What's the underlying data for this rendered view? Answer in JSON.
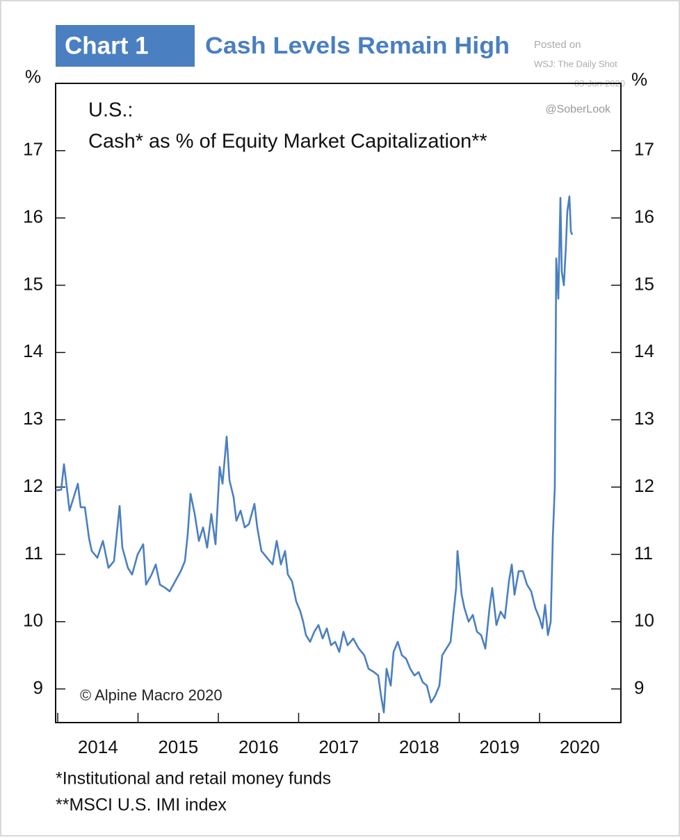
{
  "chart_data": {
    "type": "line",
    "header_label": "Chart 1",
    "title": "Cash Levels Remain High",
    "subtitle": [
      "U.S.:",
      "Cash* as % of Equity Market Capitalization**"
    ],
    "watermark": [
      "Posted on",
      "WSJ: The Daily Shot",
      "03-Jun-2020"
    ],
    "credit": "@SoberLook",
    "copyright": "© Alpine Macro 2020",
    "y_unit_label": "%",
    "y2_unit_label": "%",
    "notes": [
      "*Institutional and retail money funds",
      "**MSCI U.S. IMI index"
    ],
    "color": "#4a7fc1",
    "xlim": [
      2013.974,
      2021.013
    ],
    "xticks": [
      2014,
      2015,
      2016,
      2017,
      2018,
      2019,
      2020
    ],
    "ylim": [
      8.5,
      18
    ],
    "yticks": [
      9,
      10,
      11,
      12,
      13,
      14,
      15,
      16,
      17
    ],
    "y2lim": [
      8.5,
      18
    ],
    "y2ticks": [
      9,
      10,
      11,
      12,
      13,
      14,
      15,
      16,
      17
    ],
    "x": [
      2013.974,
      2014.043,
      2014.078,
      2014.113,
      2014.147,
      2014.251,
      2014.286,
      2014.338,
      2014.39,
      2014.424,
      2014.494,
      2014.563,
      2014.632,
      2014.701,
      2014.771,
      2014.805,
      2014.874,
      2014.926,
      2014.996,
      2015.065,
      2015.1,
      2015.169,
      2015.221,
      2015.273,
      2015.342,
      2015.394,
      2015.463,
      2015.532,
      2015.584,
      2015.619,
      2015.654,
      2015.706,
      2015.758,
      2015.81,
      2015.861,
      2015.913,
      2015.965,
      2016.017,
      2016.052,
      2016.104,
      2016.139,
      2016.19,
      2016.225,
      2016.277,
      2016.329,
      2016.381,
      2016.45,
      2016.485,
      2016.537,
      2016.606,
      2016.675,
      2016.727,
      2016.779,
      2016.831,
      2016.866,
      2016.918,
      2016.97,
      2017.022,
      2017.056,
      2017.091,
      2017.143,
      2017.195,
      2017.247,
      2017.299,
      2017.351,
      2017.403,
      2017.455,
      2017.506,
      2017.558,
      2017.61,
      2017.68,
      2017.749,
      2017.818,
      2017.87,
      2017.939,
      2017.991,
      2018.026,
      2018.061,
      2018.095,
      2018.147,
      2018.182,
      2018.234,
      2018.286,
      2018.338,
      2018.39,
      2018.442,
      2018.494,
      2018.545,
      2018.597,
      2018.649,
      2018.701,
      2018.753,
      2018.788,
      2018.84,
      2018.892,
      2018.926,
      2018.961,
      2018.978,
      2019.03,
      2019.065,
      2019.117,
      2019.169,
      2019.221,
      2019.273,
      2019.325,
      2019.377,
      2019.411,
      2019.463,
      2019.515,
      2019.567,
      2019.619,
      2019.654,
      2019.688,
      2019.74,
      2019.792,
      2019.844,
      2019.896,
      2019.948,
      2020.0,
      2020.035,
      2020.069,
      2020.104,
      2020.139,
      2020.165,
      2020.19,
      2020.208,
      2020.234,
      2020.26,
      2020.277,
      2020.303,
      2020.329,
      2020.346,
      2020.372,
      2020.39,
      2020.407
    ],
    "values": [
      11.95,
      11.96,
      12.34,
      12.0,
      11.65,
      12.05,
      11.7,
      11.7,
      11.24,
      11.05,
      10.95,
      11.2,
      10.8,
      10.9,
      11.72,
      11.1,
      10.8,
      10.7,
      11.0,
      11.15,
      10.55,
      10.7,
      10.85,
      10.55,
      10.5,
      10.45,
      10.6,
      10.75,
      10.9,
      11.3,
      11.9,
      11.6,
      11.2,
      11.4,
      11.1,
      11.6,
      11.15,
      12.3,
      12.05,
      12.75,
      12.1,
      11.85,
      11.5,
      11.65,
      11.4,
      11.45,
      11.75,
      11.4,
      11.05,
      10.95,
      10.85,
      11.2,
      10.85,
      11.05,
      10.7,
      10.6,
      10.3,
      10.15,
      10.0,
      9.8,
      9.7,
      9.85,
      9.95,
      9.75,
      9.9,
      9.65,
      9.7,
      9.55,
      9.85,
      9.65,
      9.75,
      9.6,
      9.5,
      9.3,
      9.25,
      9.2,
      8.9,
      8.65,
      9.3,
      9.05,
      9.55,
      9.7,
      9.5,
      9.45,
      9.3,
      9.2,
      9.25,
      9.1,
      9.05,
      8.8,
      8.9,
      9.05,
      9.5,
      9.6,
      9.7,
      10.1,
      10.5,
      11.05,
      10.4,
      10.2,
      10.0,
      10.1,
      9.85,
      9.8,
      9.6,
      10.2,
      10.5,
      9.95,
      10.15,
      10.05,
      10.6,
      10.85,
      10.4,
      10.75,
      10.75,
      10.55,
      10.45,
      10.2,
      10.05,
      9.9,
      10.25,
      9.8,
      10.0,
      11.25,
      12.0,
      15.4,
      14.8,
      16.3,
      15.2,
      15.0,
      15.6,
      16.1,
      16.32,
      15.8,
      15.75
    ]
  }
}
